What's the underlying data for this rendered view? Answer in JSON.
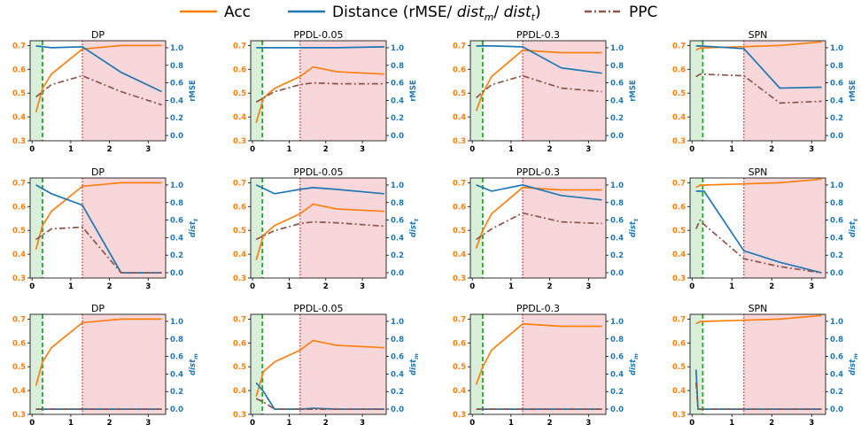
{
  "legend": {
    "acc": "Acc",
    "dist_prefix": "Distance (rMSE/ ",
    "dist_m_base": "dist",
    "dist_m_sub": "m",
    "dist_sep": "/ ",
    "dist_t_base": "dist",
    "dist_t_sub": "t",
    "dist_suffix": ")",
    "ppc": "PPC"
  },
  "colors": {
    "acc": "#ff7f0e",
    "dist": "#1f77b4",
    "ppc": "#8c564b",
    "green_vline": "#2ca02c",
    "red_vline": "#d62728",
    "green_region": "#d9efd9",
    "red_region": "#f7d7d9"
  },
  "row_labels": [
    {
      "base": "rMSE",
      "sub": ""
    },
    {
      "base": "dist",
      "sub": "t"
    },
    {
      "base": "dist",
      "sub": "m"
    }
  ],
  "chart_data": {
    "type": "line",
    "grid": false,
    "legend_placement": "top-center",
    "xticks": [
      0,
      1,
      2,
      3
    ],
    "yticks_left": [
      0.3,
      0.4,
      0.5,
      0.6,
      0.7
    ],
    "yticks_right": [
      0.0,
      0.2,
      0.4,
      0.6,
      0.8,
      1.0
    ],
    "columns": [
      {
        "title": "DP",
        "xlim": [
          -0.05,
          3.45
        ],
        "green_x": 0.27,
        "red_x": 1.3,
        "acc": {
          "x": [
            0.1,
            0.27,
            0.5,
            1.3,
            2.3,
            3.35
          ],
          "y": [
            0.42,
            0.52,
            0.58,
            0.685,
            0.7,
            0.7
          ]
        }
      },
      {
        "title": "PPDL-0.05",
        "xlim": [
          -0.05,
          3.65
        ],
        "green_x": 0.27,
        "red_x": 1.3,
        "acc": {
          "x": [
            0.1,
            0.3,
            0.6,
            1.3,
            1.65,
            2.3,
            3.6
          ],
          "y": [
            0.375,
            0.48,
            0.52,
            0.57,
            0.61,
            0.59,
            0.58
          ]
        }
      },
      {
        "title": "PPDL-0.3",
        "xlim": [
          -0.05,
          3.45
        ],
        "green_x": 0.27,
        "red_x": 1.3,
        "acc": {
          "x": [
            0.1,
            0.27,
            0.5,
            1.3,
            2.3,
            3.35
          ],
          "y": [
            0.425,
            0.5,
            0.57,
            0.68,
            0.67,
            0.67
          ]
        }
      },
      {
        "title": "SPN",
        "xlim": [
          -0.05,
          3.35
        ],
        "green_x": 0.27,
        "red_x": 1.3,
        "acc": {
          "x": [
            0.1,
            0.2,
            1.3,
            2.2,
            3.25
          ],
          "y": [
            0.68,
            0.69,
            0.695,
            0.7,
            0.715
          ]
        }
      }
    ],
    "panels": [
      {
        "row": 0,
        "col": 0,
        "dist": {
          "x": [
            0.1,
            0.5,
            1.3,
            2.3,
            3.35
          ],
          "y": [
            1.02,
            1.0,
            1.01,
            0.72,
            0.5
          ]
        },
        "ppc": {
          "x": [
            0.1,
            0.5,
            1.3,
            2.3,
            3.35
          ],
          "y": [
            0.44,
            0.58,
            0.68,
            0.5,
            0.35
          ]
        }
      },
      {
        "row": 0,
        "col": 1,
        "dist": {
          "x": [
            0.1,
            0.6,
            1.3,
            2.3,
            3.6
          ],
          "y": [
            1.0,
            1.0,
            1.0,
            1.0,
            1.01
          ]
        },
        "ppc": {
          "x": [
            0.1,
            0.6,
            1.3,
            1.65,
            2.3,
            3.6
          ],
          "y": [
            0.38,
            0.5,
            0.58,
            0.6,
            0.59,
            0.59
          ]
        }
      },
      {
        "row": 0,
        "col": 2,
        "dist": {
          "x": [
            0.1,
            0.5,
            1.3,
            2.3,
            3.35
          ],
          "y": [
            1.02,
            1.02,
            1.01,
            0.77,
            0.71
          ]
        },
        "ppc": {
          "x": [
            0.1,
            0.5,
            1.3,
            2.3,
            3.35
          ],
          "y": [
            0.43,
            0.58,
            0.68,
            0.54,
            0.5
          ]
        }
      },
      {
        "row": 0,
        "col": 3,
        "dist": {
          "x": [
            0.1,
            0.2,
            1.3,
            2.2,
            3.25
          ],
          "y": [
            1.02,
            1.02,
            0.99,
            0.54,
            0.55
          ]
        },
        "ppc": {
          "x": [
            0.1,
            0.2,
            1.3,
            2.2,
            3.25
          ],
          "y": [
            0.67,
            0.7,
            0.68,
            0.37,
            0.39
          ]
        }
      },
      {
        "row": 1,
        "col": 0,
        "dist": {
          "x": [
            0.1,
            0.5,
            1.3,
            2.3,
            3.35
          ],
          "y": [
            1.0,
            0.9,
            0.77,
            0.0,
            0.0
          ]
        },
        "ppc": {
          "x": [
            0.1,
            0.5,
            1.3,
            2.3,
            3.35
          ],
          "y": [
            0.38,
            0.5,
            0.52,
            0.0,
            0.0
          ]
        }
      },
      {
        "row": 1,
        "col": 1,
        "dist": {
          "x": [
            0.1,
            0.6,
            1.3,
            1.65,
            2.3,
            3.6
          ],
          "y": [
            1.0,
            0.9,
            0.95,
            0.97,
            0.95,
            0.9
          ]
        },
        "ppc": {
          "x": [
            0.1,
            0.6,
            1.3,
            1.65,
            2.3,
            3.6
          ],
          "y": [
            0.38,
            0.48,
            0.56,
            0.58,
            0.57,
            0.53
          ]
        }
      },
      {
        "row": 1,
        "col": 2,
        "dist": {
          "x": [
            0.1,
            0.5,
            1.3,
            2.3,
            3.35
          ],
          "y": [
            1.0,
            0.93,
            1.0,
            0.88,
            0.83
          ]
        },
        "ppc": {
          "x": [
            0.1,
            0.5,
            1.3,
            2.3,
            3.35
          ],
          "y": [
            0.38,
            0.5,
            0.68,
            0.58,
            0.56
          ]
        }
      },
      {
        "row": 1,
        "col": 3,
        "dist": {
          "x": [
            0.1,
            0.2,
            0.3,
            1.3,
            2.2,
            3.25
          ],
          "y": [
            0.93,
            0.93,
            0.93,
            0.25,
            0.12,
            0.0
          ]
        },
        "ppc": {
          "x": [
            0.1,
            0.2,
            0.3,
            1.3,
            2.2,
            3.25
          ],
          "y": [
            0.5,
            0.6,
            0.55,
            0.16,
            0.07,
            0.0
          ]
        }
      },
      {
        "row": 2,
        "col": 0,
        "dist": {
          "x": [
            0.1,
            0.5,
            1.3,
            2.3,
            3.35
          ],
          "y": [
            0.0,
            0.0,
            0.0,
            0.0,
            0.0
          ]
        },
        "ppc": {
          "x": [
            0.1,
            0.5,
            1.3,
            2.3,
            3.35
          ],
          "y": [
            0.0,
            0.0,
            0.0,
            0.0,
            0.0
          ]
        }
      },
      {
        "row": 2,
        "col": 1,
        "dist": {
          "x": [
            0.1,
            0.3,
            0.6,
            1.3,
            1.65,
            2.3,
            3.6
          ],
          "y": [
            0.3,
            0.2,
            0.0,
            0.0,
            0.01,
            0.0,
            0.0
          ]
        },
        "ppc": {
          "x": [
            0.1,
            0.3,
            0.6,
            1.3,
            1.65,
            2.3,
            3.6
          ],
          "y": [
            0.12,
            0.08,
            0.0,
            0.0,
            0.0,
            0.0,
            0.0
          ]
        }
      },
      {
        "row": 2,
        "col": 2,
        "dist": {
          "x": [
            0.1,
            0.5,
            1.3,
            2.3,
            3.35
          ],
          "y": [
            0.0,
            0.0,
            0.0,
            0.0,
            0.0
          ]
        },
        "ppc": {
          "x": [
            0.1,
            0.5,
            1.3,
            2.3,
            3.35
          ],
          "y": [
            0.0,
            0.0,
            0.0,
            0.0,
            0.0
          ]
        }
      },
      {
        "row": 2,
        "col": 3,
        "dist": {
          "x": [
            0.1,
            0.15,
            0.2,
            1.3,
            2.2,
            3.25
          ],
          "y": [
            0.45,
            0.0,
            0.0,
            0.0,
            0.0,
            0.0
          ]
        },
        "ppc": {
          "x": [
            0.1,
            0.15,
            0.2,
            1.3,
            2.2,
            3.25
          ],
          "y": [
            0.3,
            0.0,
            0.0,
            0.0,
            0.0,
            0.0
          ]
        }
      }
    ]
  }
}
